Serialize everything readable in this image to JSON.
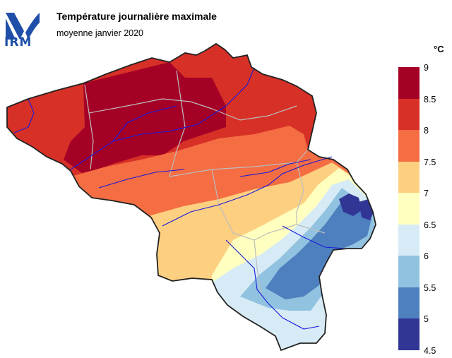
{
  "header": {
    "title": "Température journalière maximale",
    "subtitle": "moyenne janvier 2020",
    "logo_text": "IRM",
    "brand_color": "#1f4fa8"
  },
  "legend": {
    "unit": "°C",
    "ticks": [
      "9",
      "8.5",
      "8",
      "7.5",
      "7",
      "6.5",
      "6",
      "5.5",
      "5",
      "4.5"
    ],
    "classes": [
      {
        "range": "8.5–9",
        "color": "#a50026"
      },
      {
        "range": "8–8.5",
        "color": "#d73027"
      },
      {
        "range": "7.5–8",
        "color": "#f46d43"
      },
      {
        "range": "7–7.5",
        "color": "#fdd081"
      },
      {
        "range": "6.5–7",
        "color": "#ffffbf"
      },
      {
        "range": "6–6.5",
        "color": "#d6ebf5"
      },
      {
        "range": "5.5–6",
        "color": "#91c3e0"
      },
      {
        "range": "5–5.5",
        "color": "#4e80bf"
      },
      {
        "range": "4.5–5",
        "color": "#313695"
      }
    ]
  },
  "map": {
    "region": "Belgium",
    "border_color": "#222222",
    "province_border_color": "#bdbdbd",
    "river_color": "#1a1adc"
  }
}
